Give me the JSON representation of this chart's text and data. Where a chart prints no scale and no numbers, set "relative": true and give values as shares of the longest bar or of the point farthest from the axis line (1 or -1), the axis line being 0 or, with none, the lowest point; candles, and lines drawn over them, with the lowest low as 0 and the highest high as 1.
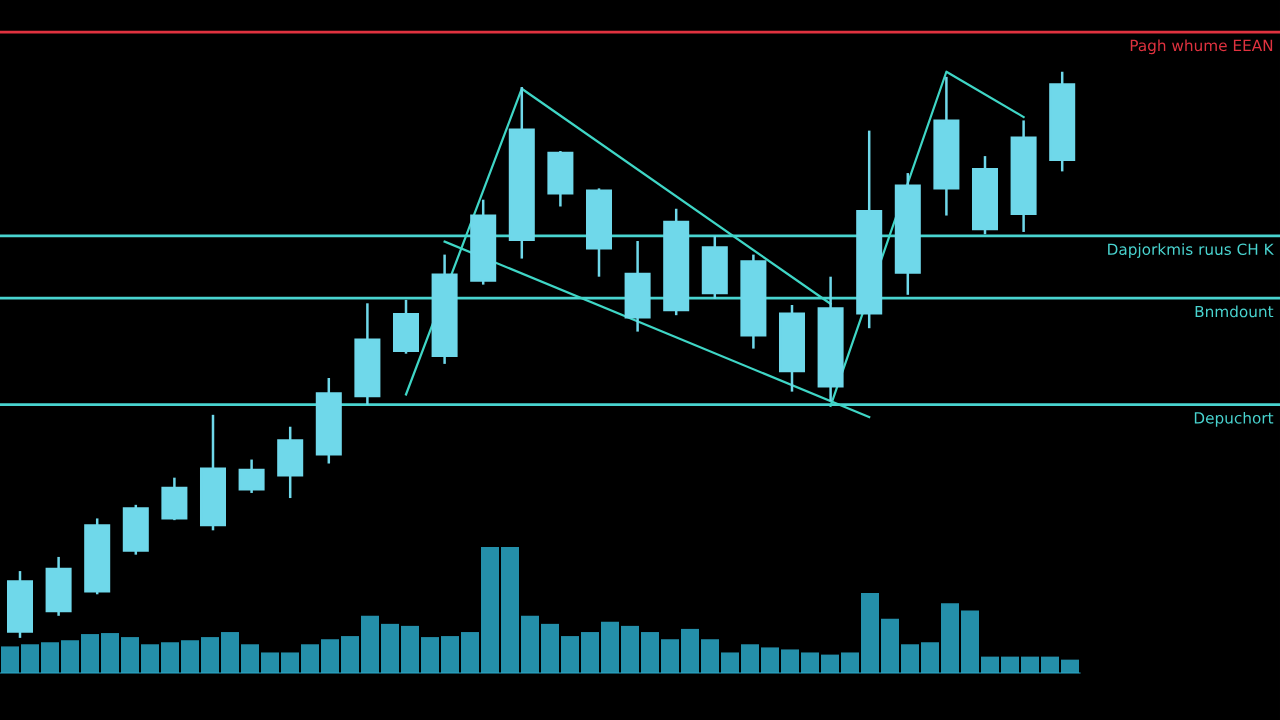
{
  "chart_data": [
    {
      "type": "candlestick",
      "relative": true,
      "color": "#6fd8ea",
      "categories": [
        null,
        null,
        null,
        null,
        null,
        null,
        null,
        null,
        null,
        null,
        null,
        null,
        null,
        null,
        null,
        null,
        null,
        null,
        null,
        null,
        null,
        null,
        null,
        null,
        null,
        null,
        null,
        null
      ],
      "ohlc": [
        [
          0.011,
          0.118,
          0,
          0.1
        ],
        [
          0.047,
          0.143,
          0.039,
          0.122
        ],
        [
          0.082,
          0.211,
          0.077,
          0.199
        ],
        [
          0.154,
          0.235,
          0.147,
          0.229
        ],
        [
          0.211,
          0.283,
          0.208,
          0.265
        ],
        [
          0.199,
          0.394,
          0.19,
          0.299
        ],
        [
          0.262,
          0.315,
          0.256,
          0.297
        ],
        [
          0.287,
          0.373,
          0.247,
          0.349
        ],
        [
          0.324,
          0.459,
          0.308,
          0.432
        ],
        [
          0.427,
          0.591,
          0.412,
          0.527
        ],
        [
          0.507,
          0.597,
          0.502,
          0.572
        ],
        [
          0.498,
          0.677,
          0.484,
          0.642
        ],
        [
          0.631,
          0.774,
          0.624,
          0.746
        ],
        [
          0.703,
          0.973,
          0.67,
          0.898
        ],
        [
          0.785,
          0.86,
          0.762,
          0.857
        ],
        [
          0.688,
          0.794,
          0.638,
          0.79
        ],
        [
          0.566,
          0.701,
          0.541,
          0.643
        ],
        [
          0.579,
          0.758,
          0.57,
          0.735
        ],
        [
          0.609,
          0.71,
          0.599,
          0.69
        ],
        [
          0.534,
          0.677,
          0.511,
          0.665
        ],
        [
          0.471,
          0.588,
          0.435,
          0.573
        ],
        [
          0.444,
          0.638,
          0.418,
          0.582
        ],
        [
          0.573,
          0.896,
          0.547,
          0.754
        ],
        [
          0.645,
          0.821,
          0.606,
          0.799
        ],
        [
          0.794,
          0.991,
          0.746,
          0.914
        ],
        [
          0.722,
          0.851,
          0.713,
          0.828
        ],
        [
          0.749,
          0.914,
          0.717,
          0.884
        ],
        [
          0.844,
          1.0,
          0.824,
          0.978
        ]
      ],
      "series": [
        {
          "type": "line",
          "color": "#3fd6c6",
          "values": [
            null,
            null,
            null,
            null,
            null,
            null,
            null,
            null,
            null,
            null,
            0.43,
            null,
            null,
            0.97,
            null,
            null,
            null,
            null,
            null,
            null,
            null,
            0.59,
            null,
            null,
            null,
            null,
            null,
            null
          ]
        },
        {
          "type": "line",
          "color": "#3fd6c6",
          "values": [
            null,
            null,
            null,
            null,
            null,
            null,
            null,
            null,
            null,
            null,
            null,
            0.7,
            null,
            null,
            null,
            null,
            null,
            null,
            null,
            null,
            null,
            null,
            0.39,
            null,
            null,
            null,
            null,
            null
          ]
        },
        {
          "type": "line",
          "color": "#3fd6c6",
          "values": [
            null,
            null,
            null,
            null,
            null,
            null,
            null,
            null,
            null,
            null,
            null,
            null,
            null,
            null,
            null,
            null,
            null,
            null,
            null,
            null,
            null,
            0.41,
            null,
            null,
            1.0,
            null,
            0.92,
            null
          ]
        }
      ],
      "ref_lines": [
        {
          "axis": "y",
          "value": 1.07,
          "label": "Pagh whume EEAN",
          "color": "#e0323f"
        },
        {
          "axis": "y",
          "value": 0.71,
          "label": "Dapjorkmis ruus CH K",
          "color": "#49d4d0"
        },
        {
          "axis": "y",
          "value": 0.6,
          "label": "Bnmdount",
          "color": "#49d4d0"
        },
        {
          "axis": "y",
          "value": 0.412,
          "label": "Depuchort",
          "color": "#49d4d0"
        }
      ]
    },
    {
      "type": "bar",
      "relative": true,
      "color": "#2aa8c8",
      "categories": [
        null,
        null,
        null,
        null,
        null,
        null,
        null,
        null,
        null,
        null,
        null,
        null,
        null,
        null,
        null,
        null,
        null,
        null,
        null,
        null,
        null,
        null,
        null,
        null,
        null,
        null,
        null,
        null,
        null,
        null,
        null,
        null,
        null,
        null,
        null,
        null,
        null,
        null,
        null,
        null,
        null,
        null,
        null,
        null,
        null,
        null,
        null,
        null,
        null,
        null,
        null,
        null,
        null,
        null
      ],
      "values": [
        0.211,
        0.228,
        0.244,
        0.26,
        0.309,
        0.317,
        0.285,
        0.228,
        0.244,
        0.26,
        0.285,
        0.325,
        0.228,
        0.163,
        0.163,
        0.228,
        0.268,
        0.293,
        0.455,
        0.39,
        0.374,
        0.285,
        0.293,
        0.325,
        1.0,
        1.0,
        0.455,
        0.39,
        0.293,
        0.325,
        0.407,
        0.374,
        0.325,
        0.268,
        0.35,
        0.268,
        0.163,
        0.228,
        0.203,
        0.187,
        0.163,
        0.146,
        0.163,
        0.634,
        0.431,
        0.228,
        0.244,
        0.553,
        0.496,
        0.13,
        0.13,
        0.13,
        0.13,
        0.106
      ]
    }
  ]
}
